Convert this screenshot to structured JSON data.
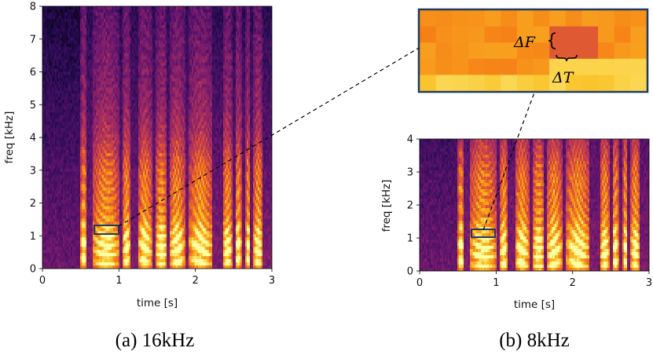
{
  "panels": [
    {
      "id": "a",
      "caption": "(a) 16kHz",
      "xlabel": "time [s]",
      "ylabel": "freq [kHz]",
      "xticks": [
        "0",
        "1",
        "2",
        "3"
      ],
      "yticks": [
        "0",
        "1",
        "2",
        "3",
        "4",
        "5",
        "6",
        "7",
        "8"
      ],
      "xlim": [
        0,
        3
      ],
      "ylim": [
        0,
        8
      ]
    },
    {
      "id": "b",
      "caption": "(b) 8kHz",
      "xlabel": "time [s]",
      "ylabel": "freq [kHz]",
      "xticks": [
        "0",
        "1",
        "2",
        "3"
      ],
      "yticks": [
        "0",
        "1",
        "2",
        "3",
        "4"
      ],
      "xlim": [
        0,
        3
      ],
      "ylim": [
        0,
        4
      ]
    }
  ],
  "zoom": {
    "delta_f_label": "ΔF",
    "delta_t_label": "ΔT"
  },
  "colors": {
    "colormap": "inferno",
    "highlight_box": "#1f3b64",
    "zoom_frame": "#1f3b64",
    "connector": "#000000"
  }
}
